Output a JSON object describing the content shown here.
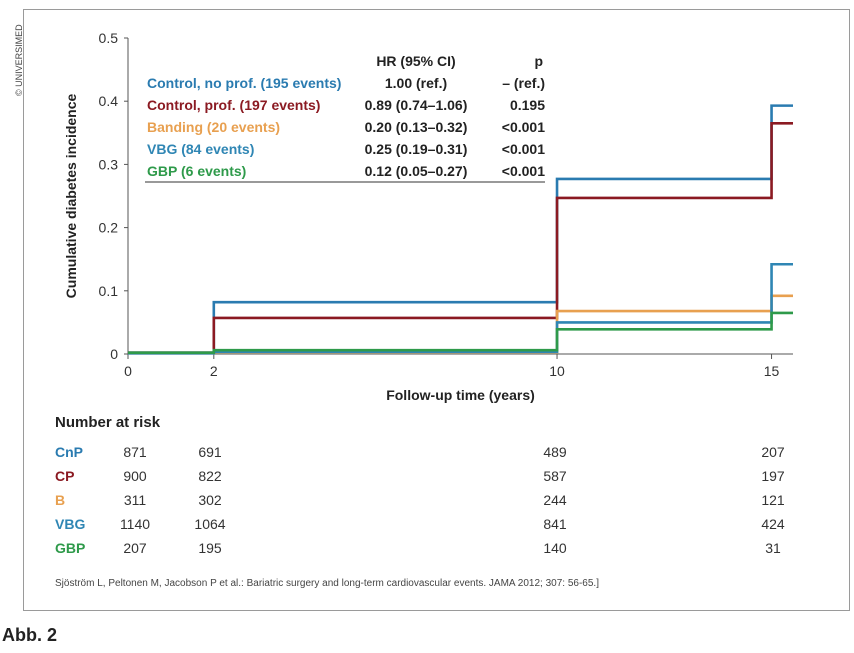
{
  "copyright": "© UNIVERSIMED",
  "figure_label": "Abb. 2",
  "source": "Sjöström L, Peltonen M, Jacobson P et al.: Bariatric surgery and long-term cardiovascular events. JAMA 2012; 307: 56-65.]",
  "colors": {
    "cnp": "#2a7bb0",
    "cp": "#8b1a22",
    "b": "#e8a050",
    "vbg": "#2f86b4",
    "gbp": "#2e9a4a"
  },
  "legend": {
    "hr_header": "HR (95% CI)",
    "p_header": "p",
    "rows": [
      {
        "label": "Control, no prof. (195 events)",
        "hr": "1.00 (ref.)",
        "p": "– (ref.)",
        "color": "#2a7bb0"
      },
      {
        "label": "Control, prof. (197 events)",
        "hr": "0.89 (0.74–1.06)",
        "p": "0.195",
        "color": "#8b1a22"
      },
      {
        "label": "Banding (20 events)",
        "hr": "0.20 (0.13–0.32)",
        "p": "<0.001",
        "color": "#e8a050"
      },
      {
        "label": "VBG (84 events)",
        "hr": "0.25 (0.19–0.31)",
        "p": "<0.001",
        "color": "#2f86b4"
      },
      {
        "label": "GBP (6 events)",
        "hr": "0.12 (0.05–0.27)",
        "p": "<0.001",
        "color": "#2e9a4a"
      }
    ]
  },
  "risk_table": {
    "title": "Number at risk",
    "timepoints": [
      0,
      2,
      10,
      15
    ],
    "rows": [
      {
        "label": "CnP",
        "values": [
          "871",
          "691",
          "489",
          "207"
        ],
        "color": "#2a7bb0"
      },
      {
        "label": "CP",
        "values": [
          "900",
          "822",
          "587",
          "197"
        ],
        "color": "#8b1a22"
      },
      {
        "label": "B",
        "values": [
          "311",
          "302",
          "244",
          "121"
        ],
        "color": "#e8a050"
      },
      {
        "label": "VBG",
        "values": [
          "1140",
          "1064",
          "841",
          "424"
        ],
        "color": "#2f86b4"
      },
      {
        "label": "GBP",
        "values": [
          "207",
          "195",
          "140",
          "31"
        ],
        "color": "#2e9a4a"
      }
    ]
  },
  "chart_data": {
    "type": "line",
    "xlabel": "Follow-up time (years)",
    "ylabel": "Cumulative diabetes incidence",
    "xlim": [
      0,
      15.5
    ],
    "ylim": [
      0,
      0.5
    ],
    "xticks": [
      0,
      2,
      10,
      15
    ],
    "yticks": [
      0,
      0.1,
      0.2,
      0.3,
      0.4,
      0.5
    ],
    "ytick_labels": [
      "0",
      "0.1",
      "0.2",
      "0.3",
      "0.4",
      "0.5"
    ],
    "step": true,
    "series": [
      {
        "name": "Control, no prof. (195 events)",
        "color": "#2a7bb0",
        "x": [
          0,
          2,
          10,
          15,
          15.5
        ],
        "y": [
          0.002,
          0.082,
          0.277,
          0.393,
          0.393
        ]
      },
      {
        "name": "Control, prof. (197 events)",
        "color": "#8b1a22",
        "x": [
          0,
          2,
          10,
          15,
          15.5
        ],
        "y": [
          0.002,
          0.057,
          0.247,
          0.365,
          0.365
        ]
      },
      {
        "name": "Banding (20 events)",
        "color": "#e8a050",
        "x": [
          0,
          2,
          10,
          15,
          15.5
        ],
        "y": [
          0.001,
          0.002,
          0.068,
          0.092,
          0.092
        ]
      },
      {
        "name": "VBG (84 events)",
        "color": "#2f86b4",
        "x": [
          0,
          2,
          10,
          15,
          15.5
        ],
        "y": [
          0.001,
          0.003,
          0.05,
          0.142,
          0.142
        ]
      },
      {
        "name": "GBP (6 events)",
        "color": "#2e9a4a",
        "x": [
          0,
          2,
          10,
          15,
          15.5
        ],
        "y": [
          0.002,
          0.006,
          0.039,
          0.065,
          0.065
        ]
      }
    ]
  }
}
